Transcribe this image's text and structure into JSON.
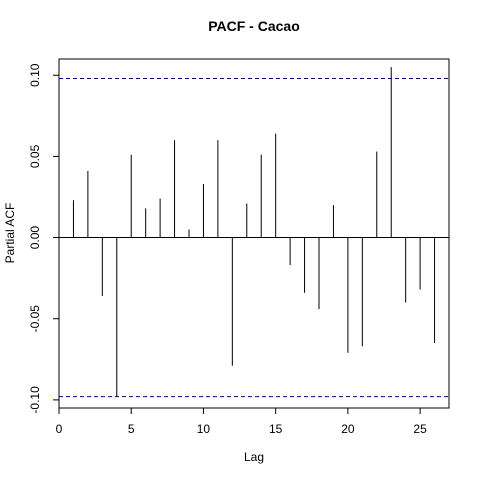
{
  "chart_data": {
    "type": "bar",
    "title": "PACF - Cacao",
    "xlabel": "Lag",
    "ylabel": "Partial ACF",
    "xlim": [
      0,
      27
    ],
    "ylim": [
      -0.105,
      0.11
    ],
    "x_ticks": [
      0,
      5,
      10,
      15,
      20,
      25
    ],
    "x_tick_labels": [
      "0",
      "5",
      "10",
      "15",
      "20",
      "25"
    ],
    "y_ticks": [
      -0.1,
      -0.05,
      0.0,
      0.05,
      0.1
    ],
    "y_tick_labels": [
      "-0.10",
      "-0.05",
      "0.00",
      "0.05",
      "0.10"
    ],
    "confidence_bound": 0.098,
    "confidence_color": "#00008b",
    "bar_color": "#000000",
    "grid": false,
    "legend": "none",
    "lags": [
      1,
      2,
      3,
      4,
      5,
      6,
      7,
      8,
      9,
      10,
      11,
      12,
      13,
      14,
      15,
      16,
      17,
      18,
      19,
      20,
      21,
      22,
      23,
      24,
      25,
      26
    ],
    "values": [
      0.023,
      0.041,
      -0.036,
      -0.098,
      0.051,
      0.018,
      0.024,
      0.06,
      0.005,
      0.033,
      0.06,
      -0.079,
      0.021,
      0.051,
      0.064,
      -0.017,
      -0.034,
      -0.044,
      0.02,
      -0.071,
      -0.067,
      0.053,
      0.105,
      -0.04,
      -0.032,
      -0.065
    ]
  }
}
